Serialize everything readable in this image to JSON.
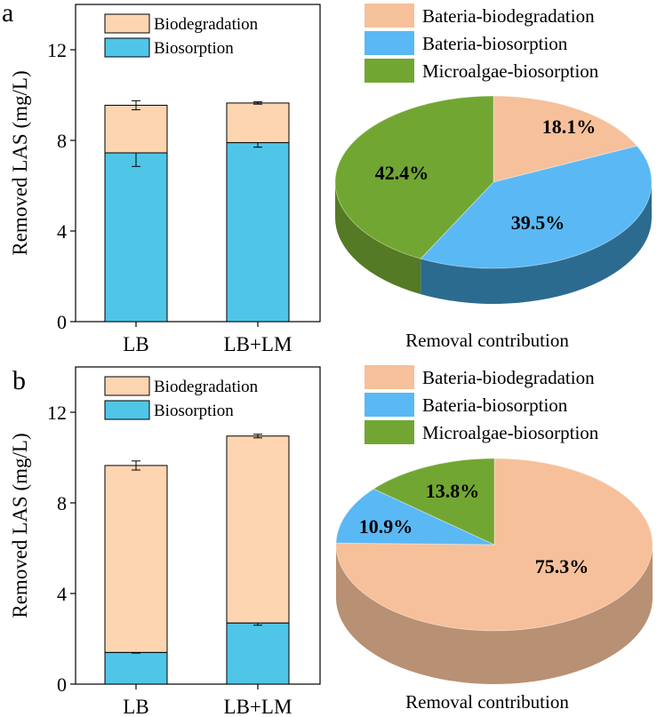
{
  "colors": {
    "biodegradation": "#fdd5b1",
    "biosorption": "#4fc6e8",
    "pie_biodeg_top": "#f6c09a",
    "pie_biodeg_side": "#b89073",
    "pie_bact_sorp_top": "#5ab8f5",
    "pie_bact_sorp_side": "#2c6b90",
    "pie_algae_top": "#72a632",
    "pie_algae_side": "#547a25"
  },
  "chart_data": [
    {
      "panel": "a",
      "type": "bar",
      "stacked": true,
      "ylabel": "Removed LAS (mg/L)",
      "ylim": [
        0,
        14
      ],
      "yticks": [
        "0",
        "4",
        "8",
        "12"
      ],
      "categories": [
        "LB",
        "LB+LM"
      ],
      "series": [
        {
          "name": "Biosorption",
          "values": [
            7.45,
            7.9
          ],
          "errors": [
            0.6,
            0.2
          ]
        },
        {
          "name": "Biodegradation",
          "values": [
            2.1,
            1.75
          ],
          "errors": [
            0.2,
            0.05
          ]
        }
      ],
      "legend": [
        "Biodegradation",
        "Biosorption"
      ]
    },
    {
      "panel": "a",
      "type": "pie",
      "title": "Removal contribution",
      "labels": [
        "Bateria-biodegradation",
        "Bateria-biosorption",
        "Microalgae-biosorption"
      ],
      "values": [
        18.1,
        39.5,
        42.4
      ],
      "value_labels": [
        "18.1%",
        "39.5%",
        "42.4%"
      ]
    },
    {
      "panel": "b",
      "type": "bar",
      "stacked": true,
      "ylabel": "Removed LAS (mg/L)",
      "ylim": [
        0,
        14
      ],
      "yticks": [
        "0",
        "4",
        "8",
        "12"
      ],
      "categories": [
        "LB",
        "LB+LM"
      ],
      "series": [
        {
          "name": "Biosorption",
          "values": [
            1.4,
            2.7
          ],
          "errors": [
            0.03,
            0.1
          ]
        },
        {
          "name": "Biodegradation",
          "values": [
            8.25,
            8.25
          ],
          "errors": [
            0.2,
            0.08
          ]
        }
      ],
      "legend": [
        "Biodegradation",
        "Biosorption"
      ]
    },
    {
      "panel": "b",
      "type": "pie",
      "title": "Removal contribution",
      "labels": [
        "Bateria-biodegradation",
        "Bateria-biosorption",
        "Microalgae-biosorption"
      ],
      "values": [
        75.3,
        10.9,
        13.8
      ],
      "value_labels": [
        "75.3%",
        "10.9%",
        "13.8%"
      ]
    }
  ],
  "panels": [
    {
      "letter": "a"
    },
    {
      "letter": "b"
    }
  ]
}
